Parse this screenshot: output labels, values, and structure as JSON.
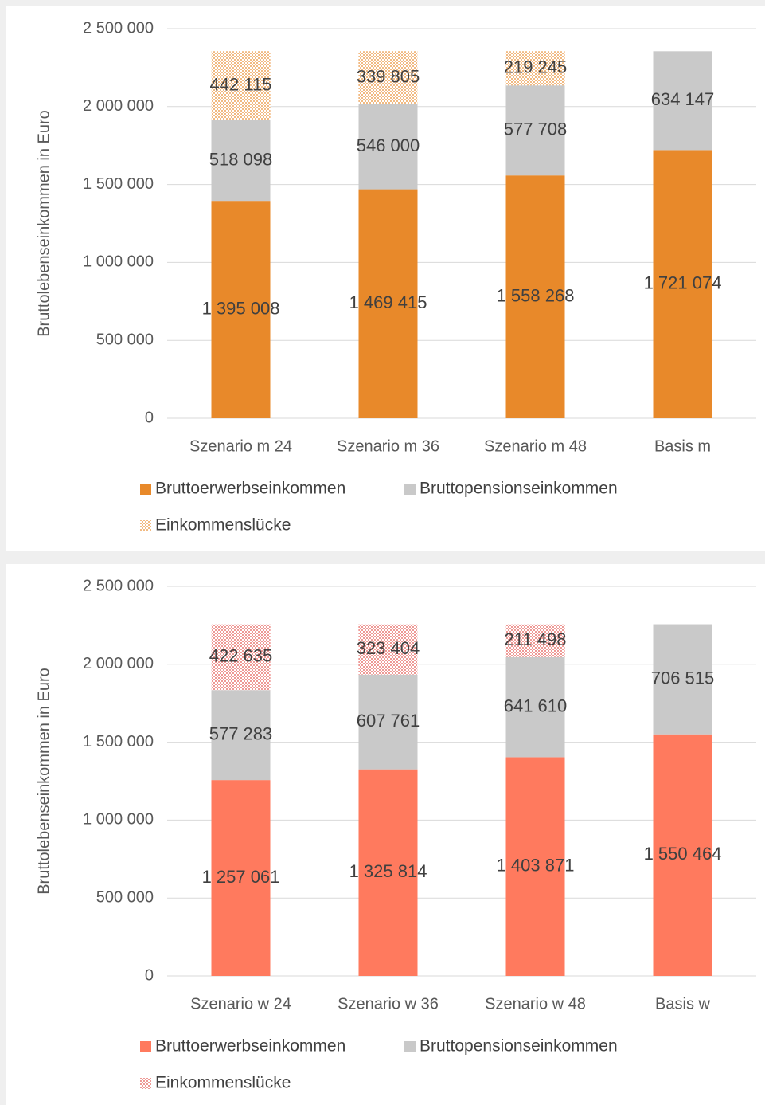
{
  "chart_data": [
    {
      "type": "bar",
      "stacked": true,
      "y_label": "Bruttolebenseinkommen in Euro",
      "categories": [
        "Szenario m 24",
        "Szenario m 36",
        "Szenario m 48",
        "Basis m"
      ],
      "series": [
        {
          "name": "Bruttoerwerbseinkommen",
          "color": "#e8892a",
          "values": [
            1395008,
            1469415,
            1558268,
            1721074
          ],
          "value_labels": [
            "1 395 008",
            "1 469 415",
            "1 558 268",
            "1 721 074"
          ]
        },
        {
          "name": "Bruttopensionseinkommen",
          "color": "#c9c9c9",
          "values": [
            518098,
            546000,
            577708,
            634147
          ],
          "value_labels": [
            "518 098",
            "546 000",
            "577 708",
            "634 147"
          ]
        },
        {
          "name": "Einkommenslücke",
          "color": "#e8892a",
          "pattern": "dots",
          "values": [
            442115,
            339805,
            219245,
            null
          ],
          "value_labels": [
            "442 115",
            "339 805",
            "219 245",
            null
          ]
        }
      ],
      "ylim": [
        0,
        2500000
      ],
      "yticks": [
        0,
        {
          "value": 500000,
          "label": "500 000"
        },
        {
          "value": 1000000,
          "label": "1 000 000"
        },
        {
          "value": 1500000,
          "label": "1 500 000"
        },
        {
          "value": 2000000,
          "label": "2 000 000"
        },
        {
          "value": 2500000,
          "label": "2 500 000"
        }
      ],
      "grid": true,
      "legend": "bottom"
    },
    {
      "type": "bar",
      "stacked": true,
      "y_label": "Bruttolebenseinkommen in Euro",
      "categories": [
        "Szenario w 24",
        "Szenario w 36",
        "Szenario w 48",
        "Basis w"
      ],
      "series": [
        {
          "name": "Bruttoerwerbseinkommen",
          "color": "#ff7a5e",
          "values": [
            1257061,
            1325814,
            1403871,
            1550464
          ],
          "value_labels": [
            "1 257 061",
            "1 325 814",
            "1 403 871",
            "1 550 464"
          ]
        },
        {
          "name": "Bruttopensionseinkommen",
          "color": "#c9c9c9",
          "values": [
            577283,
            607761,
            641610,
            706515
          ],
          "value_labels": [
            "577 283",
            "607 761",
            "641 610",
            "706 515"
          ]
        },
        {
          "name": "Einkommenslücke",
          "color": "#e2504a",
          "pattern": "dots",
          "values": [
            422635,
            323404,
            211498,
            null
          ],
          "value_labels": [
            "422 635",
            "323 404",
            "211 498",
            null
          ]
        }
      ],
      "ylim": [
        0,
        2500000
      ],
      "yticks": [
        0,
        {
          "value": 500000,
          "label": "500 000"
        },
        {
          "value": 1000000,
          "label": "1 000 000"
        },
        {
          "value": 1500000,
          "label": "1 500 000"
        },
        {
          "value": 2000000,
          "label": "2 000 000"
        },
        {
          "value": 2500000,
          "label": "2 500 000"
        }
      ],
      "grid": true,
      "legend": "bottom"
    }
  ]
}
